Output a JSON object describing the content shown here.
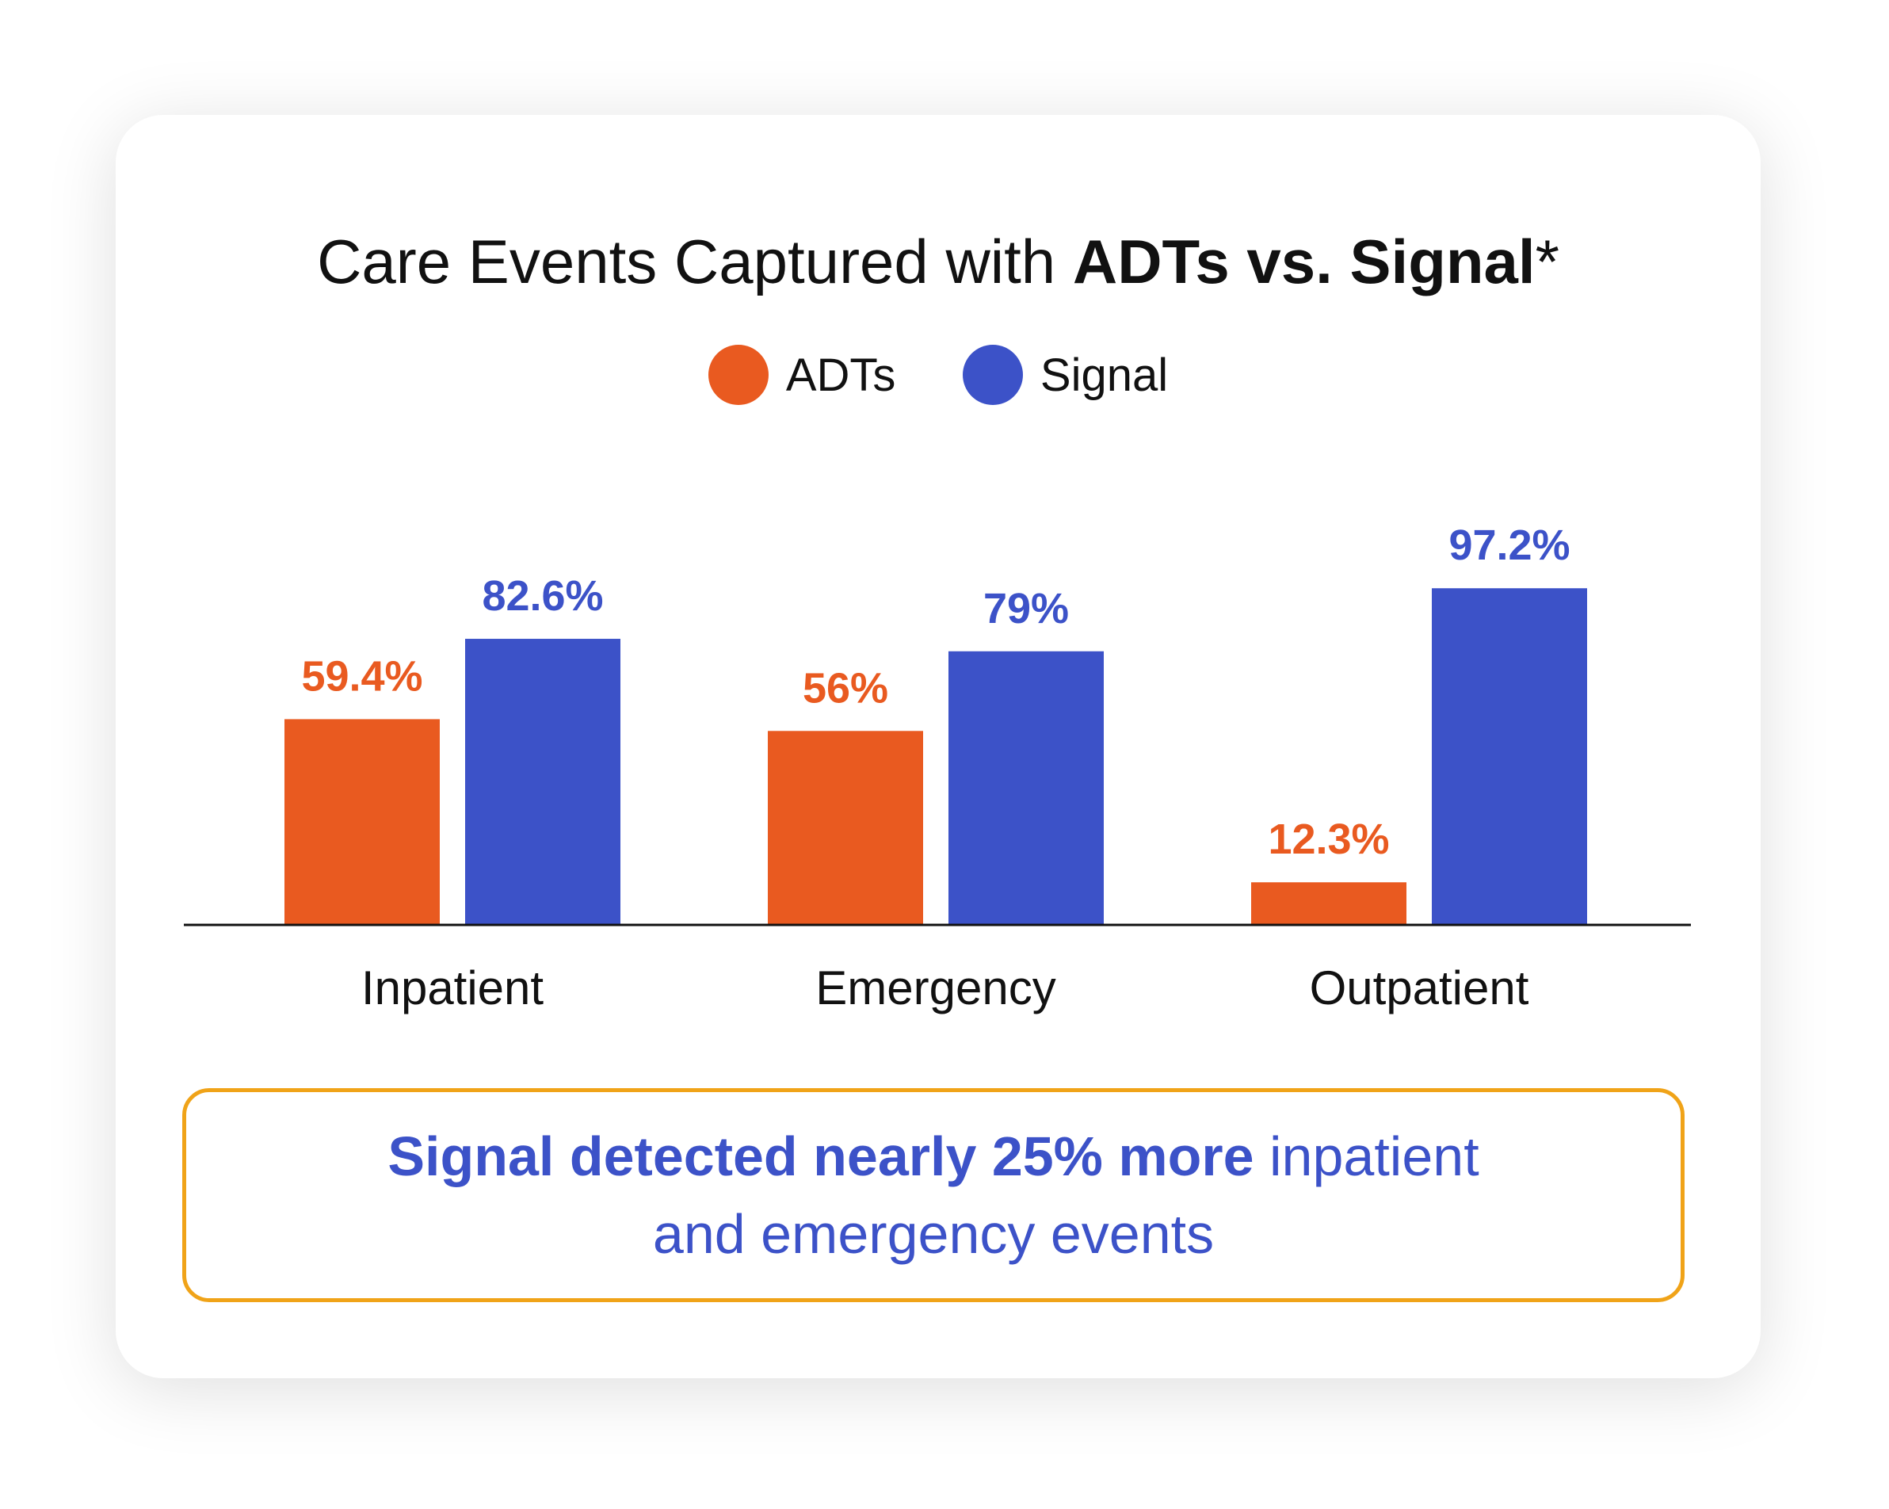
{
  "colors": {
    "adts": "#e95a20",
    "signal": "#3c52c8",
    "axis": "#111111",
    "callout_border": "#f0a318"
  },
  "chart_data": {
    "type": "bar",
    "title_prefix": "Care Events Captured with ",
    "title_bold": "ADTs vs. Signal",
    "title_suffix": "*",
    "categories": [
      "Inpatient",
      "Emergency",
      "Outpatient"
    ],
    "series": [
      {
        "name": "ADTs",
        "values": [
          59.4,
          56,
          12.3
        ],
        "labels": [
          "59.4%",
          "56%",
          "12.3%"
        ]
      },
      {
        "name": "Signal",
        "values": [
          82.6,
          79,
          97.2
        ],
        "labels": [
          "82.6%",
          "79%",
          "97.2%"
        ]
      }
    ],
    "ylim": [
      0,
      100
    ],
    "legend": "top-center",
    "grid": false,
    "xlabel": "",
    "ylabel": ""
  },
  "callout": {
    "bold_text": "Signal detected nearly 25% more",
    "line1_rest": " inpatient",
    "line2": "and emergency events"
  }
}
